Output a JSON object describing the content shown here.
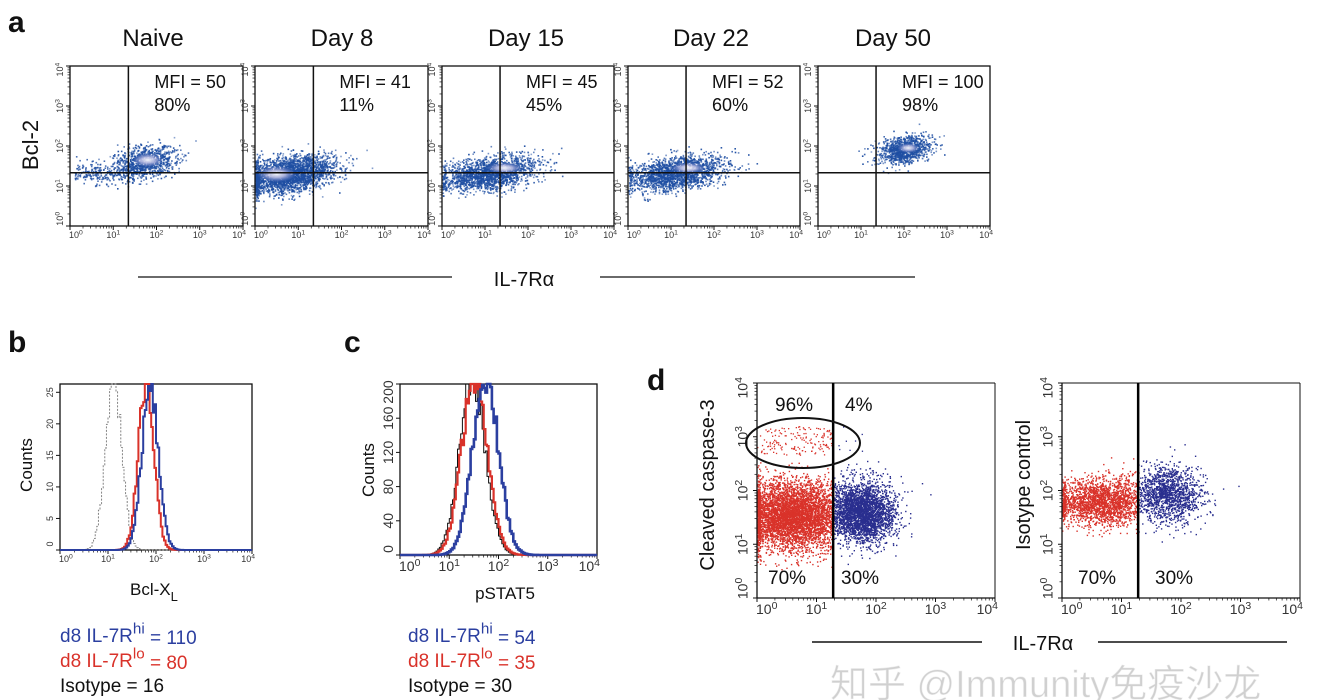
{
  "panel_a": {
    "letter": "a",
    "y_label": "Bcl-2",
    "x_label": "IL-7Rα",
    "tick_base": "10",
    "tick_exponents": [
      "0",
      "1",
      "2",
      "3",
      "4"
    ],
    "plots": [
      {
        "title": "Naive",
        "mfi": "MFI = 50",
        "percent": "80%"
      },
      {
        "title": "Day 8",
        "mfi": "MFI = 41",
        "percent": "11%"
      },
      {
        "title": "Day 15",
        "mfi": "MFI = 45",
        "percent": "45%"
      },
      {
        "title": "Day 22",
        "mfi": "MFI = 52",
        "percent": "60%"
      },
      {
        "title": "Day 50",
        "mfi": "MFI = 100",
        "percent": "98%"
      }
    ],
    "colors": {
      "density": "#1f4fa3",
      "core": "#e8e4f4"
    }
  },
  "panel_b": {
    "letter": "b",
    "y_label": "Counts",
    "x_label": "Bcl-X",
    "x_label_sub": "L",
    "y_ticks": [
      "0",
      "5",
      "10",
      "15",
      "20",
      "25"
    ],
    "legend": [
      {
        "prefix": "d8 IL-7R",
        "sup": "hi",
        "suffix": " = 110",
        "color": "#2b3fa0"
      },
      {
        "prefix": "d8 IL-7R",
        "sup": "lo",
        "suffix": " = 80",
        "color": "#d9322a"
      },
      {
        "prefix": "Isotype = 16",
        "sup": "",
        "suffix": "",
        "color": "#111111"
      }
    ]
  },
  "panel_c": {
    "letter": "c",
    "y_label": "Counts",
    "x_label": "pSTAT5",
    "y_ticks": [
      "0",
      "40",
      "80",
      "120",
      "160",
      "200"
    ],
    "legend": [
      {
        "prefix": "d8  IL-7R",
        "sup": "hi",
        "suffix": " = 54",
        "color": "#2b3fa0"
      },
      {
        "prefix": "d8  IL-7R",
        "sup": "lo",
        "suffix": " = 35",
        "color": "#d9322a"
      },
      {
        "prefix": "Isotype = 30",
        "sup": "",
        "suffix": "",
        "color": "#111111"
      }
    ]
  },
  "panel_d": {
    "letter": "d",
    "x_label": "IL-7Rα",
    "plots": [
      {
        "y_label": "Cleaved caspase-3",
        "quadrants": {
          "upper_left": "96%",
          "upper_right": "4%",
          "lower_left": "70%",
          "lower_right": "30%"
        }
      },
      {
        "y_label": "Isotype control",
        "quadrants": {
          "lower_left": "70%",
          "lower_right": "30%"
        }
      }
    ],
    "colors": {
      "low": "#d9322a",
      "high": "#2a2f8f"
    }
  },
  "watermark": "知乎 @Immunity免疫沙龙"
}
